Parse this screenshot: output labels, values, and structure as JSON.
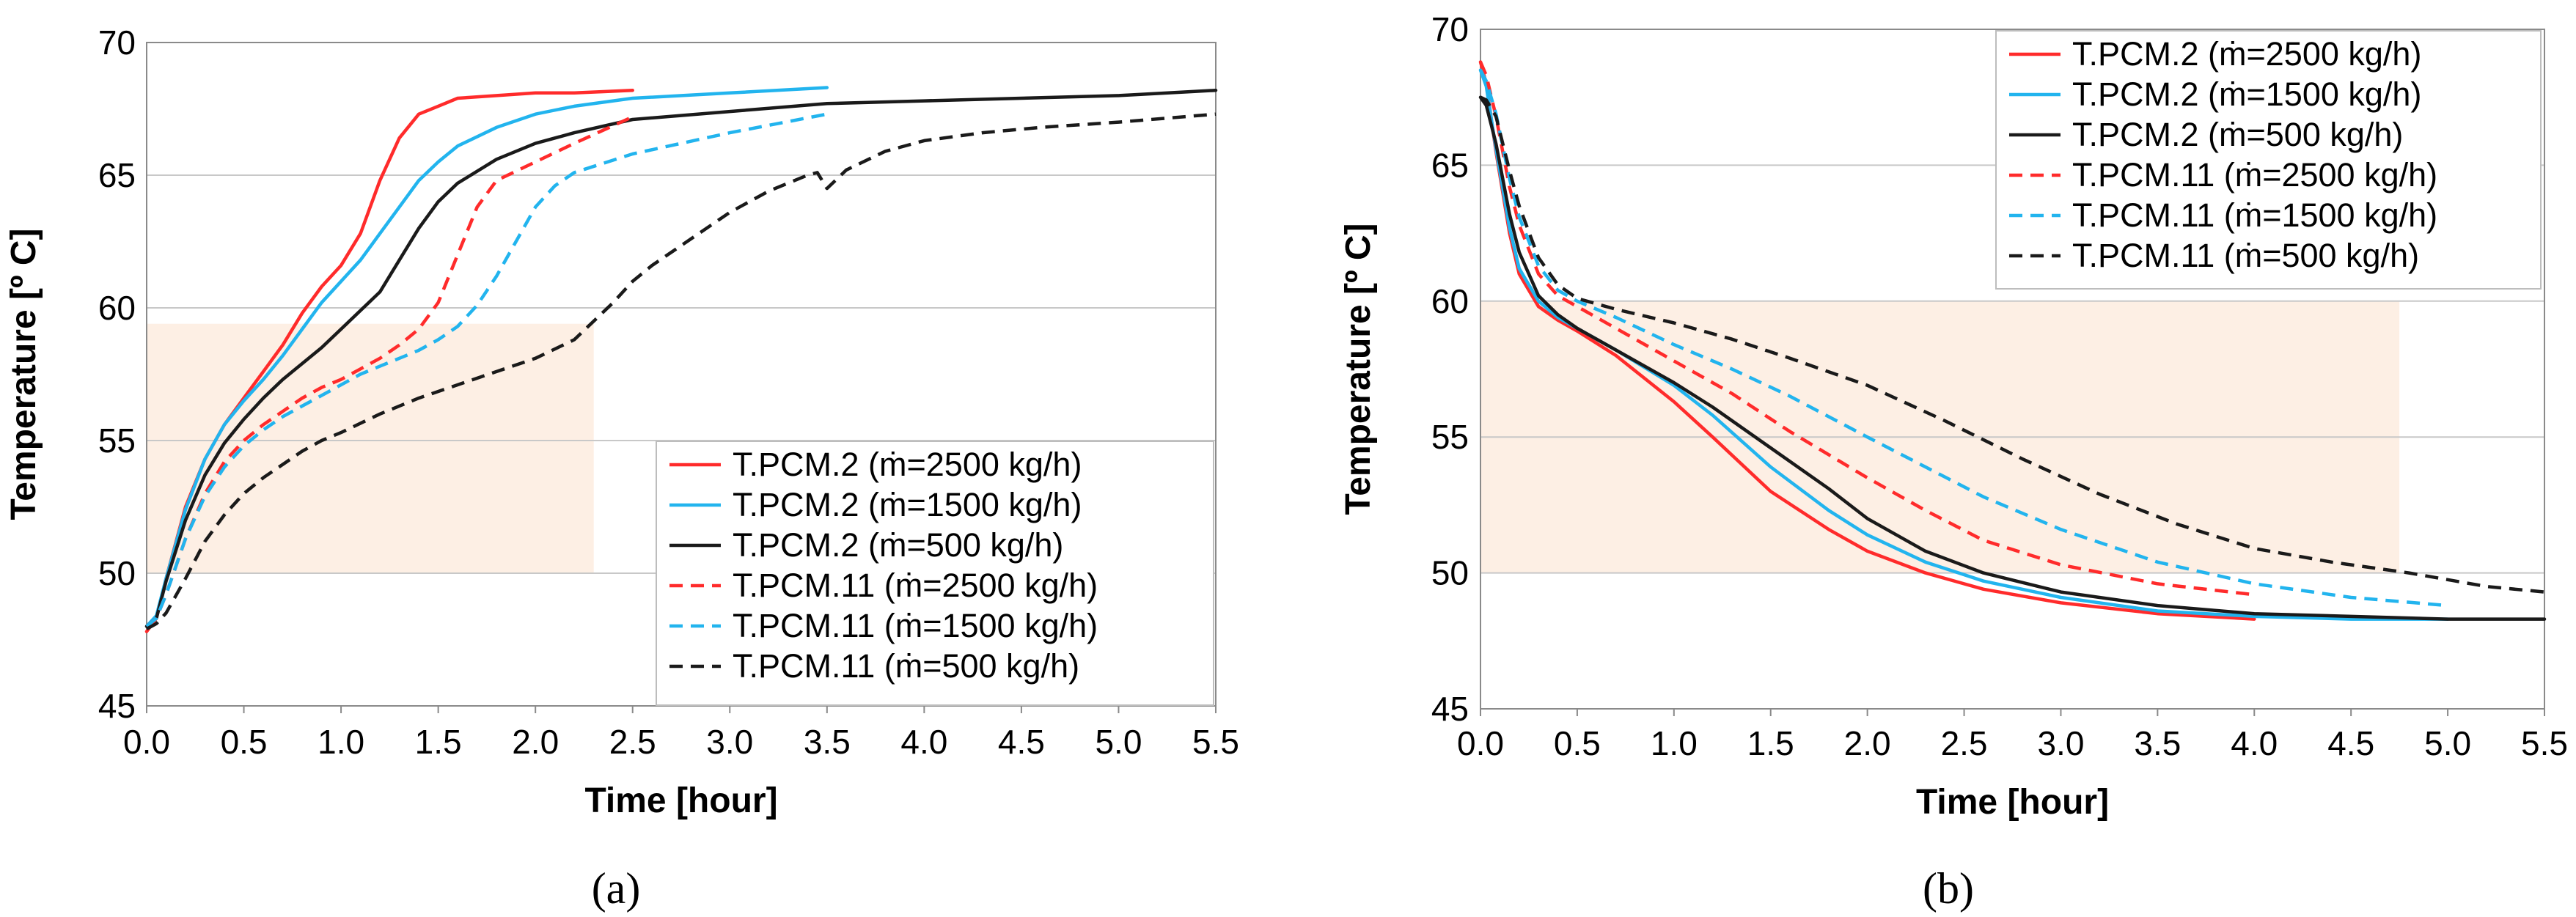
{
  "figure": {
    "panel_labels": [
      "(a)",
      "(b)"
    ]
  },
  "styles": {
    "band_color": "#fdefe4",
    "grid_color": "#c8c8c8",
    "colors": {
      "red": "#ff2b2b",
      "cyan": "#22b4ee",
      "black": "#1a1a1a"
    }
  },
  "chart_data": [
    {
      "type": "line",
      "panel": "(a)",
      "xlabel": "Time [hour]",
      "ylabel": "Temperature [º C]",
      "xlim": [
        0,
        5.5
      ],
      "ylim": [
        45,
        70
      ],
      "xticks": [
        "0.0",
        "0.5",
        "1.0",
        "1.5",
        "2.0",
        "2.5",
        "3.0",
        "3.5",
        "4.0",
        "4.5",
        "5.0",
        "5.5"
      ],
      "yticks": [
        "45",
        "50",
        "55",
        "60",
        "65",
        "70"
      ],
      "legend_position": "bottom-right",
      "shaded_region": {
        "x": [
          0,
          2.3
        ],
        "y": [
          50.0,
          59.4
        ]
      },
      "series": [
        {
          "name": "T.PCM.2 (ṁ=2500 kg/h)",
          "color": "red",
          "dash": "solid",
          "x": [
            0,
            0.05,
            0.1,
            0.2,
            0.3,
            0.4,
            0.5,
            0.6,
            0.7,
            0.8,
            0.9,
            1.0,
            1.1,
            1.2,
            1.3,
            1.4,
            1.5,
            1.6,
            1.8,
            2.0,
            2.2,
            2.5
          ],
          "y": [
            47.8,
            48.3,
            49.8,
            52.5,
            54.3,
            55.6,
            56.6,
            57.6,
            58.6,
            59.8,
            60.8,
            61.6,
            62.8,
            64.8,
            66.4,
            67.3,
            67.6,
            67.9,
            68.0,
            68.1,
            68.1,
            68.2
          ]
        },
        {
          "name": "T.PCM.2 (ṁ=1500 kg/h)",
          "color": "cyan",
          "dash": "solid",
          "x": [
            0,
            0.05,
            0.1,
            0.2,
            0.3,
            0.4,
            0.5,
            0.6,
            0.7,
            0.8,
            0.9,
            1.0,
            1.1,
            1.2,
            1.3,
            1.4,
            1.5,
            1.6,
            1.8,
            2.0,
            2.2,
            2.5,
            3.0,
            3.5
          ],
          "y": [
            48.0,
            48.4,
            49.8,
            52.4,
            54.3,
            55.6,
            56.5,
            57.3,
            58.2,
            59.2,
            60.2,
            61.0,
            61.8,
            62.8,
            63.8,
            64.8,
            65.5,
            66.1,
            66.8,
            67.3,
            67.6,
            67.9,
            68.1,
            68.3
          ]
        },
        {
          "name": "T.PCM.2 (ṁ=500 kg/h)",
          "color": "black",
          "dash": "solid",
          "x": [
            0,
            0.05,
            0.1,
            0.2,
            0.3,
            0.4,
            0.5,
            0.6,
            0.7,
            0.8,
            0.9,
            1.0,
            1.1,
            1.2,
            1.3,
            1.4,
            1.5,
            1.6,
            1.8,
            2.0,
            2.2,
            2.5,
            3.0,
            3.5,
            4.0,
            4.5,
            5.0,
            5.5
          ],
          "y": [
            48.0,
            48.3,
            49.7,
            52.0,
            53.7,
            54.9,
            55.8,
            56.6,
            57.3,
            57.9,
            58.5,
            59.2,
            59.9,
            60.6,
            61.8,
            63.0,
            64.0,
            64.7,
            65.6,
            66.2,
            66.6,
            67.1,
            67.4,
            67.7,
            67.8,
            67.9,
            68.0,
            68.2
          ]
        },
        {
          "name": "T.PCM.11 (ṁ=2500 kg/h)",
          "color": "red",
          "dash": "dashed",
          "x": [
            0,
            0.05,
            0.1,
            0.2,
            0.3,
            0.4,
            0.5,
            0.6,
            0.7,
            0.8,
            0.9,
            1.0,
            1.1,
            1.2,
            1.3,
            1.4,
            1.5,
            1.6,
            1.7,
            1.8,
            2.0,
            2.2,
            2.5
          ],
          "y": [
            48.0,
            48.3,
            49.2,
            51.3,
            53.0,
            54.2,
            55.0,
            55.6,
            56.1,
            56.6,
            57.0,
            57.3,
            57.7,
            58.1,
            58.6,
            59.2,
            60.2,
            62.0,
            63.8,
            64.8,
            65.5,
            66.2,
            67.2
          ]
        },
        {
          "name": "T.PCM.11 (ṁ=1500 kg/h)",
          "color": "cyan",
          "dash": "dashed",
          "x": [
            0,
            0.05,
            0.1,
            0.2,
            0.3,
            0.4,
            0.5,
            0.6,
            0.7,
            0.8,
            0.9,
            1.0,
            1.1,
            1.2,
            1.3,
            1.4,
            1.5,
            1.6,
            1.7,
            1.8,
            1.9,
            2.0,
            2.1,
            2.2,
            2.5,
            3.0,
            3.5
          ],
          "y": [
            48.0,
            48.3,
            49.2,
            51.3,
            52.9,
            54.0,
            54.8,
            55.4,
            55.9,
            56.3,
            56.7,
            57.1,
            57.5,
            57.8,
            58.1,
            58.4,
            58.8,
            59.3,
            60.1,
            61.2,
            62.5,
            63.8,
            64.6,
            65.1,
            65.8,
            66.6,
            67.3
          ]
        },
        {
          "name": "T.PCM.11 (ṁ=500 kg/h)",
          "color": "black",
          "dash": "dashed",
          "x": [
            0,
            0.05,
            0.1,
            0.2,
            0.3,
            0.4,
            0.5,
            0.6,
            0.7,
            0.8,
            0.9,
            1.0,
            1.2,
            1.4,
            1.6,
            1.8,
            2.0,
            2.2,
            2.4,
            2.5,
            2.6,
            2.8,
            3.0,
            3.2,
            3.4,
            3.45,
            3.5,
            3.6,
            3.8,
            4.0,
            4.3,
            4.6,
            5.0,
            5.5
          ],
          "y": [
            47.9,
            48.1,
            48.5,
            49.8,
            51.2,
            52.2,
            53.0,
            53.6,
            54.1,
            54.6,
            55.0,
            55.3,
            56.0,
            56.6,
            57.1,
            57.6,
            58.1,
            58.8,
            60.2,
            61.0,
            61.6,
            62.6,
            63.6,
            64.4,
            65.0,
            65.1,
            64.5,
            65.2,
            65.9,
            66.3,
            66.6,
            66.8,
            67.0,
            67.3
          ]
        }
      ]
    },
    {
      "type": "line",
      "panel": "(b)",
      "xlabel": "Time [hour]",
      "ylabel": "Temperature [º C]",
      "xlim": [
        0,
        5.5
      ],
      "ylim": [
        45,
        70
      ],
      "xticks": [
        "0.0",
        "0.5",
        "1.0",
        "1.5",
        "2.0",
        "2.5",
        "3.0",
        "3.5",
        "4.0",
        "4.5",
        "5.0",
        "5.5"
      ],
      "yticks": [
        "45",
        "50",
        "55",
        "60",
        "65",
        "70"
      ],
      "legend_position": "top-right",
      "shaded_region": {
        "x": [
          0,
          4.75
        ],
        "y": [
          50.0,
          60.0
        ]
      },
      "series": [
        {
          "name": "T.PCM.2 (ṁ=2500 kg/h)",
          "color": "red",
          "dash": "solid",
          "x": [
            0,
            0.03,
            0.08,
            0.15,
            0.2,
            0.3,
            0.4,
            0.5,
            0.7,
            1.0,
            1.2,
            1.5,
            1.8,
            2.0,
            2.3,
            2.6,
            3.0,
            3.5,
            4.0
          ],
          "y": [
            68.8,
            68.0,
            65.5,
            62.5,
            61.0,
            59.8,
            59.3,
            58.9,
            58.0,
            56.3,
            55.0,
            53.0,
            51.6,
            50.8,
            50.0,
            49.4,
            48.9,
            48.5,
            48.3
          ]
        },
        {
          "name": "T.PCM.2 (ṁ=1500 kg/h)",
          "color": "cyan",
          "dash": "solid",
          "x": [
            0,
            0.03,
            0.08,
            0.15,
            0.2,
            0.3,
            0.4,
            0.5,
            0.7,
            1.0,
            1.2,
            1.5,
            1.8,
            2.0,
            2.3,
            2.6,
            3.0,
            3.5,
            4.0,
            4.5,
            5.0
          ],
          "y": [
            68.5,
            67.9,
            65.6,
            62.7,
            61.2,
            60.0,
            59.4,
            59.0,
            58.2,
            56.9,
            55.8,
            53.9,
            52.3,
            51.4,
            50.4,
            49.7,
            49.1,
            48.6,
            48.4,
            48.3,
            48.3
          ]
        },
        {
          "name": "T.PCM.2 (ṁ=500 kg/h)",
          "color": "black",
          "dash": "solid",
          "x": [
            0,
            0.03,
            0.08,
            0.15,
            0.2,
            0.3,
            0.4,
            0.5,
            0.7,
            1.0,
            1.2,
            1.5,
            1.8,
            2.0,
            2.3,
            2.6,
            3.0,
            3.5,
            4.0,
            4.5,
            5.0,
            5.5
          ],
          "y": [
            67.5,
            67.2,
            65.8,
            63.2,
            61.8,
            60.2,
            59.5,
            59.0,
            58.2,
            57.0,
            56.1,
            54.6,
            53.1,
            52.0,
            50.8,
            50.0,
            49.3,
            48.8,
            48.5,
            48.4,
            48.3,
            48.3
          ]
        },
        {
          "name": "T.PCM.11 (ṁ=2500 kg/h)",
          "color": "red",
          "dash": "dashed",
          "x": [
            0,
            0.03,
            0.08,
            0.15,
            0.2,
            0.3,
            0.4,
            0.5,
            0.7,
            1.0,
            1.3,
            1.6,
            2.0,
            2.3,
            2.6,
            3.0,
            3.5,
            4.0
          ],
          "y": [
            68.8,
            68.3,
            66.8,
            64.2,
            62.8,
            61.0,
            60.2,
            59.8,
            59.0,
            57.8,
            56.6,
            55.2,
            53.5,
            52.3,
            51.2,
            50.3,
            49.6,
            49.2
          ]
        },
        {
          "name": "T.PCM.11 (ṁ=1500 kg/h)",
          "color": "cyan",
          "dash": "dashed",
          "x": [
            0,
            0.03,
            0.08,
            0.15,
            0.2,
            0.3,
            0.4,
            0.5,
            0.7,
            1.0,
            1.3,
            1.6,
            2.0,
            2.3,
            2.6,
            3.0,
            3.5,
            4.0,
            4.5,
            5.0
          ],
          "y": [
            68.5,
            68.1,
            66.9,
            64.5,
            63.1,
            61.3,
            60.4,
            60.0,
            59.4,
            58.4,
            57.5,
            56.5,
            55.0,
            53.9,
            52.8,
            51.6,
            50.4,
            49.6,
            49.1,
            48.8
          ]
        },
        {
          "name": "T.PCM.11 (ṁ=500 kg/h)",
          "color": "black",
          "dash": "dashed",
          "x": [
            0,
            0.03,
            0.08,
            0.15,
            0.2,
            0.3,
            0.4,
            0.5,
            0.7,
            1.0,
            1.3,
            1.6,
            2.0,
            2.4,
            2.8,
            3.2,
            3.6,
            4.0,
            4.4,
            4.8,
            5.2,
            5.5
          ],
          "y": [
            67.5,
            67.4,
            66.8,
            64.8,
            63.5,
            61.6,
            60.6,
            60.1,
            59.7,
            59.2,
            58.6,
            57.9,
            56.9,
            55.6,
            54.2,
            52.9,
            51.8,
            50.9,
            50.4,
            50.0,
            49.5,
            49.3
          ]
        }
      ]
    }
  ]
}
